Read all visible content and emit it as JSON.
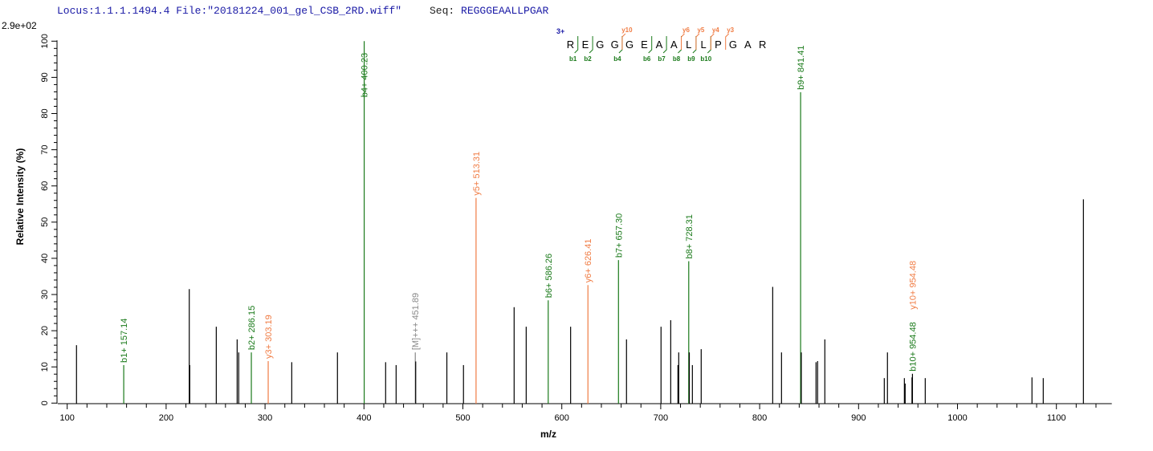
{
  "header": {
    "locus": "Locus:1.1.1.1494.4",
    "file": "File:\"20181224_001_gel_CSB_2RD.wiff\"",
    "seq_label": "Seq:",
    "seq_value": "REGGGEAALLPGAR"
  },
  "colors": {
    "b_ion": "#1a7a1a",
    "y_ion": "#f07c44",
    "precursor": "#888888",
    "unassigned": "#000000",
    "header": "#1a1aa6"
  },
  "chart_data": {
    "type": "bar",
    "max_intensity_label": "2.9e+02",
    "xlabel": "m/z",
    "ylabel": "Relative  Intensity (%)",
    "xlim": [
      90.5,
      1156
    ],
    "ylim": [
      0,
      100
    ],
    "x_ticks": [
      "100",
      "200",
      "300",
      "400",
      "500",
      "600",
      "700",
      "800",
      "900",
      "1000",
      "1100"
    ],
    "y_ticks": [
      "0",
      "10",
      "20",
      "30",
      "40",
      "50",
      "60",
      "70",
      "80",
      "90",
      "100"
    ],
    "grid": false,
    "peaks": [
      {
        "mz": 109.4,
        "intensity": 16.0,
        "ion": "none"
      },
      {
        "mz": 157.14,
        "intensity": 10.5,
        "ion": "b",
        "label": "b1+ 157.14"
      },
      {
        "mz": 223.4,
        "intensity": 31.5,
        "ion": "none"
      },
      {
        "mz": 223.9,
        "intensity": 10.5,
        "ion": "none"
      },
      {
        "mz": 250.7,
        "intensity": 21.1,
        "ion": "none"
      },
      {
        "mz": 271.8,
        "intensity": 17.6,
        "ion": "none"
      },
      {
        "mz": 273.4,
        "intensity": 14.0,
        "ion": "none"
      },
      {
        "mz": 286.15,
        "intensity": 14.0,
        "ion": "b",
        "label": "b2+ 286.15"
      },
      {
        "mz": 303.19,
        "intensity": 11.6,
        "ion": "y",
        "label": "y3+ 303.19"
      },
      {
        "mz": 327.0,
        "intensity": 11.3,
        "ion": "none"
      },
      {
        "mz": 373.2,
        "intensity": 14.0,
        "ion": "none"
      },
      {
        "mz": 400.23,
        "intensity": 100,
        "ion": "b",
        "label": "b4+ 400.23"
      },
      {
        "mz": 421.9,
        "intensity": 11.3,
        "ion": "none"
      },
      {
        "mz": 432.5,
        "intensity": 10.5,
        "ion": "none"
      },
      {
        "mz": 451.89,
        "intensity": 14.0,
        "ion": "precursor",
        "label": "[M]+++ 451.89"
      },
      {
        "mz": 452.3,
        "intensity": 11.5,
        "ion": "none"
      },
      {
        "mz": 483.8,
        "intensity": 14.0,
        "ion": "none"
      },
      {
        "mz": 500.6,
        "intensity": 10.5,
        "ion": "none"
      },
      {
        "mz": 513.31,
        "intensity": 56.7,
        "ion": "y",
        "label": "y5+ 513.31"
      },
      {
        "mz": 551.8,
        "intensity": 26.5,
        "ion": "none"
      },
      {
        "mz": 564.0,
        "intensity": 21.1,
        "ion": "none"
      },
      {
        "mz": 586.26,
        "intensity": 28.4,
        "ion": "b",
        "label": "b6+ 586.26"
      },
      {
        "mz": 608.9,
        "intensity": 21.1,
        "ion": "none"
      },
      {
        "mz": 626.41,
        "intensity": 32.6,
        "ion": "y",
        "label": "y6+ 626.41"
      },
      {
        "mz": 657.3,
        "intensity": 39.5,
        "ion": "b",
        "label": "b7+ 657.30"
      },
      {
        "mz": 665.4,
        "intensity": 17.6,
        "ion": "none"
      },
      {
        "mz": 700.3,
        "intensity": 21.1,
        "ion": "none"
      },
      {
        "mz": 710.1,
        "intensity": 22.9,
        "ion": "none"
      },
      {
        "mz": 717.4,
        "intensity": 10.5,
        "ion": "none"
      },
      {
        "mz": 718.2,
        "intensity": 14.0,
        "ion": "none"
      },
      {
        "mz": 728.31,
        "intensity": 39.2,
        "ion": "b",
        "label": "b8+ 728.31"
      },
      {
        "mz": 728.9,
        "intensity": 14.0,
        "ion": "none"
      },
      {
        "mz": 732.0,
        "intensity": 10.5,
        "ion": "none"
      },
      {
        "mz": 740.9,
        "intensity": 14.9,
        "ion": "none"
      },
      {
        "mz": 813.2,
        "intensity": 32.1,
        "ion": "none"
      },
      {
        "mz": 822.1,
        "intensity": 14.0,
        "ion": "none"
      },
      {
        "mz": 841.41,
        "intensity": 85.9,
        "ion": "b",
        "label": "b9+ 841.41"
      },
      {
        "mz": 842.1,
        "intensity": 14.0,
        "ion": "none"
      },
      {
        "mz": 857.0,
        "intensity": 11.3,
        "ion": "none"
      },
      {
        "mz": 858.6,
        "intensity": 11.6,
        "ion": "none"
      },
      {
        "mz": 865.9,
        "intensity": 17.6,
        "ion": "none"
      },
      {
        "mz": 926.0,
        "intensity": 6.9,
        "ion": "none"
      },
      {
        "mz": 929.2,
        "intensity": 14.0,
        "ion": "none"
      },
      {
        "mz": 946.3,
        "intensity": 6.9,
        "ion": "none"
      },
      {
        "mz": 947.1,
        "intensity": 5.4,
        "ion": "none"
      },
      {
        "mz": 954.0,
        "intensity": 7.1,
        "ion": "none"
      },
      {
        "mz": 954.48,
        "intensity": 8.1,
        "ion": "b",
        "label": "b10+ 954.48",
        "label2": "y10+ 954.48"
      },
      {
        "mz": 967.4,
        "intensity": 6.9,
        "ion": "none"
      },
      {
        "mz": 1075.3,
        "intensity": 7.1,
        "ion": "none"
      },
      {
        "mz": 1086.7,
        "intensity": 6.9,
        "ion": "none"
      },
      {
        "mz": 1127.3,
        "intensity": 56.3,
        "ion": "none"
      }
    ]
  },
  "sequence_map": {
    "charge": "3+",
    "residues": [
      "R",
      "E",
      "G",
      "G",
      "G",
      "E",
      "A",
      "A",
      "L",
      "L",
      "P",
      "G",
      "A",
      "R"
    ],
    "b_ions": [
      {
        "after": 1,
        "label": "b1"
      },
      {
        "after": 2,
        "label": "b2"
      },
      {
        "after": 4,
        "label": "b4"
      },
      {
        "after": 6,
        "label": "b6"
      },
      {
        "after": 7,
        "label": "b7"
      },
      {
        "after": 8,
        "label": "b8"
      },
      {
        "after": 9,
        "label": "b9"
      },
      {
        "after": 10,
        "label": "b10"
      }
    ],
    "y_ions": [
      {
        "after": 4,
        "label": "y10"
      },
      {
        "after": 8,
        "label": "y6"
      },
      {
        "after": 9,
        "label": "y5"
      },
      {
        "after": 10,
        "label": "y4"
      },
      {
        "after": 11,
        "label": "y3"
      }
    ]
  }
}
